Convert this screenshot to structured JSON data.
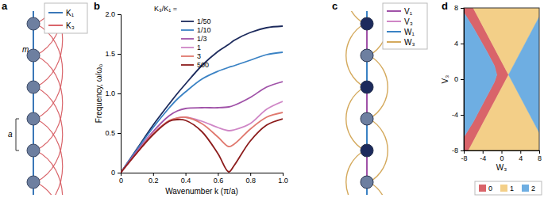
{
  "chart_data": [
    {
      "panel": "b",
      "type": "line",
      "x_label": "Wavenumber k (π/a)",
      "y_label": "Frequency, ω/ω₀",
      "legend_title": "K₃/K₁ =",
      "legend": "top-left",
      "x": [
        0,
        0.1,
        0.2,
        0.3,
        0.35,
        0.4,
        0.5,
        0.6,
        0.667,
        0.7,
        0.8,
        0.9,
        1.0
      ],
      "series": [
        {
          "name": "1/50",
          "color": "#1c2a5c",
          "values": [
            0,
            0.3,
            0.6,
            0.87,
            1.0,
            1.12,
            1.35,
            1.53,
            1.62,
            1.67,
            1.77,
            1.83,
            1.85
          ]
        },
        {
          "name": "1/10",
          "color": "#3a82c4",
          "values": [
            0,
            0.29,
            0.57,
            0.82,
            0.93,
            1.02,
            1.18,
            1.28,
            1.33,
            1.35,
            1.42,
            1.49,
            1.52
          ]
        },
        {
          "name": "1/3",
          "color": "#a052a8",
          "values": [
            0,
            0.27,
            0.52,
            0.72,
            0.78,
            0.81,
            0.82,
            0.82,
            0.83,
            0.85,
            0.95,
            1.08,
            1.15
          ]
        },
        {
          "name": "1",
          "color": "#cf86c6",
          "values": [
            0,
            0.25,
            0.5,
            0.65,
            0.69,
            0.7,
            0.65,
            0.57,
            0.53,
            0.54,
            0.62,
            0.8,
            0.9
          ]
        },
        {
          "name": "3",
          "color": "#e0786e",
          "values": [
            0,
            0.25,
            0.49,
            0.66,
            0.69,
            0.7,
            0.62,
            0.45,
            0.33,
            0.36,
            0.55,
            0.7,
            0.76
          ]
        },
        {
          "name": "500",
          "color": "#8c1c1c",
          "values": [
            0,
            0.25,
            0.48,
            0.65,
            0.67,
            0.66,
            0.52,
            0.24,
            0.01,
            0.09,
            0.4,
            0.6,
            0.68
          ]
        }
      ],
      "xlim": [
        0,
        1
      ],
      "xticks": [
        0,
        0.2,
        0.4,
        0.6,
        0.8,
        {
          "value": 1,
          "label": "1.0"
        }
      ],
      "ylim": [
        0,
        2
      ],
      "yticks": [
        0,
        0.5,
        {
          "value": 1,
          "label": "1.0"
        },
        1.5,
        {
          "value": 2,
          "label": "2.0"
        }
      ]
    },
    {
      "panel": "d",
      "type": "region",
      "x_label": "W₃",
      "y_label": "V₃",
      "legend": "bottom",
      "xlim": [
        -8,
        8
      ],
      "xticks": [
        -8,
        -4,
        0,
        4,
        8
      ],
      "ylim": [
        -8,
        8
      ],
      "yticks": [
        -8,
        -4,
        0,
        4,
        8
      ],
      "regions": [
        {
          "value": 0,
          "color": "#d9646a",
          "polygons": [
            [
              [
                -8,
                8
              ],
              [
                -6,
                8
              ],
              [
                1.5,
                0.5
              ],
              [
                -7,
                -8
              ],
              [
                -8,
                -8
              ],
              [
                -8,
                -6.5
              ],
              [
                -6,
                -4.8
              ],
              [
                -3,
                -1.8
              ],
              [
                -1.5,
                -0.3
              ],
              [
                -1,
                0.5
              ],
              [
                -1.5,
                1.5
              ],
              [
                -3,
                3
              ],
              [
                -6,
                5.8
              ],
              [
                -8,
                7.5
              ]
            ]
          ]
        },
        {
          "value": 1,
          "color": "#f3cf88",
          "polygons": [
            [
              [
                -6,
                8
              ],
              [
                1.5,
                0.5
              ],
              [
                8,
                7
              ],
              [
                8,
                8
              ]
            ],
            [
              [
                1.5,
                0.5
              ],
              [
                8,
                -6
              ],
              [
                8,
                -8
              ],
              [
                -7,
                -8
              ]
            ]
          ]
        },
        {
          "value": 2,
          "color": "#6eaee2",
          "polygons": [
            [
              [
                1.5,
                0.5
              ],
              [
                8,
                7
              ],
              [
                8,
                -6
              ]
            ],
            [
              [
                -8,
                7.5
              ],
              [
                -6,
                5.8
              ],
              [
                -3,
                3
              ],
              [
                -1.5,
                1.5
              ],
              [
                -1,
                0.5
              ],
              [
                -1.5,
                -0.3
              ],
              [
                -3,
                -1.8
              ],
              [
                -6,
                -4.8
              ],
              [
                -8,
                -6.5
              ]
            ]
          ]
        }
      ]
    }
  ],
  "diagrams": [
    {
      "panel": "a",
      "mass_label": "m",
      "spacing_label": "a",
      "legend": [
        {
          "label": "K₁",
          "color": "#3a78b8"
        },
        {
          "label": "K₃",
          "color": "#d9646a"
        }
      ]
    },
    {
      "panel": "c",
      "legend": [
        {
          "label": "V₁",
          "color": "#a052a8"
        },
        {
          "label": "V₃",
          "color": "#cf86c6"
        },
        {
          "label": "W₁",
          "color": "#3a82c4"
        },
        {
          "label": "W₃",
          "color": "#d4a95c"
        }
      ]
    }
  ]
}
